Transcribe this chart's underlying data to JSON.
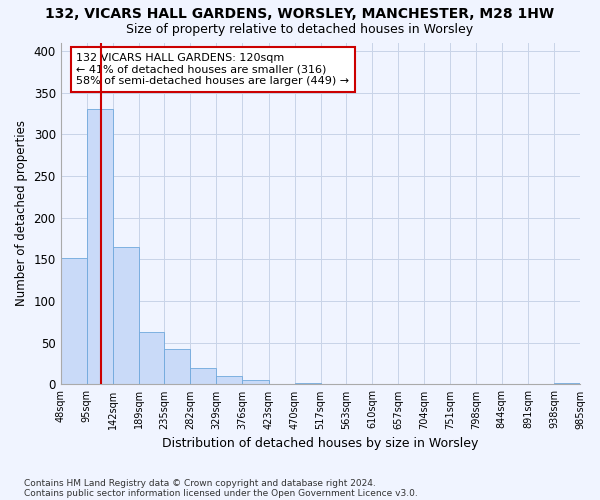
{
  "title1": "132, VICARS HALL GARDENS, WORSLEY, MANCHESTER, M28 1HW",
  "title2": "Size of property relative to detached houses in Worsley",
  "xlabel": "Distribution of detached houses by size in Worsley",
  "ylabel": "Number of detached properties",
  "footer1": "Contains HM Land Registry data © Crown copyright and database right 2024.",
  "footer2": "Contains public sector information licensed under the Open Government Licence v3.0.",
  "annotation_line1": "132 VICARS HALL GARDENS: 120sqm",
  "annotation_line2": "← 41% of detached houses are smaller (316)",
  "annotation_line3": "58% of semi-detached houses are larger (449) →",
  "bar_edges": [
    48,
    95,
    142,
    189,
    235,
    282,
    329,
    376,
    423,
    470,
    517,
    563,
    610,
    657,
    704,
    751,
    798,
    844,
    891,
    938,
    985
  ],
  "bar_heights": [
    152,
    330,
    165,
    63,
    42,
    20,
    10,
    5,
    0,
    2,
    0,
    0,
    0,
    0,
    0,
    0,
    0,
    0,
    0,
    2
  ],
  "property_size": 120,
  "bar_color": "#c9daf8",
  "bar_edge_color": "#6fa8dc",
  "line_color": "#cc0000",
  "grid_color": "#c8d4e8",
  "annotation_box_color": "#cc0000",
  "ylim": [
    0,
    410
  ],
  "yticks": [
    0,
    50,
    100,
    150,
    200,
    250,
    300,
    350,
    400
  ],
  "fig_bg": "#f0f4ff"
}
